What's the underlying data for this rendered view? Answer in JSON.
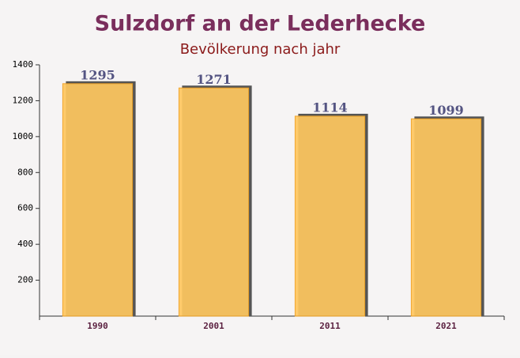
{
  "chart_data": {
    "type": "bar",
    "title": "Sulzdorf an der Lederhecke",
    "subtitle": "Bevölkerung nach jahr",
    "categories": [
      "1990",
      "2001",
      "2011",
      "2021"
    ],
    "values": [
      1295,
      1271,
      1114,
      1099
    ],
    "color": "#ffc75f",
    "ylim": [
      0,
      1400
    ],
    "yticks": [
      200,
      400,
      600,
      800,
      1000,
      1200,
      1400
    ],
    "data_labels": true
  }
}
